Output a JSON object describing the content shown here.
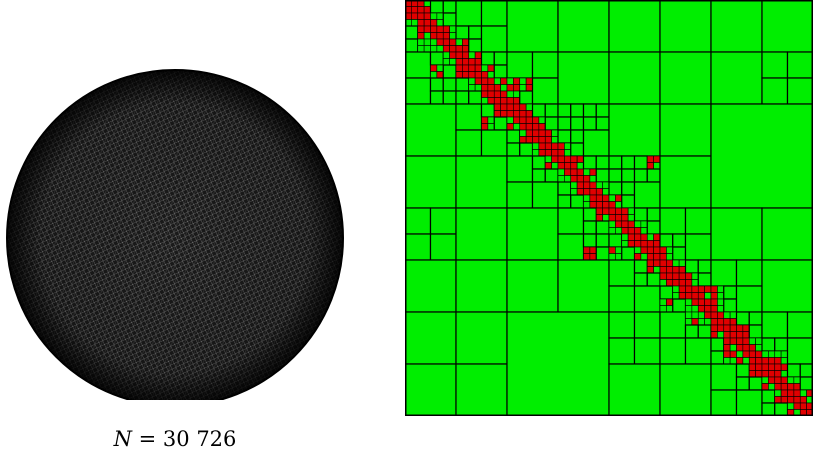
{
  "caption": {
    "variable": "N",
    "equals": " = ",
    "value": "30 726"
  },
  "sphere": {
    "shape": "sphere-triangulated-mesh",
    "color": "#000000"
  },
  "matrix": {
    "type": "hierarchical-block-partition",
    "low_rank_color": "#00ee00",
    "dense_color": "#e00000",
    "border_color": "#000000",
    "levels": 6
  }
}
